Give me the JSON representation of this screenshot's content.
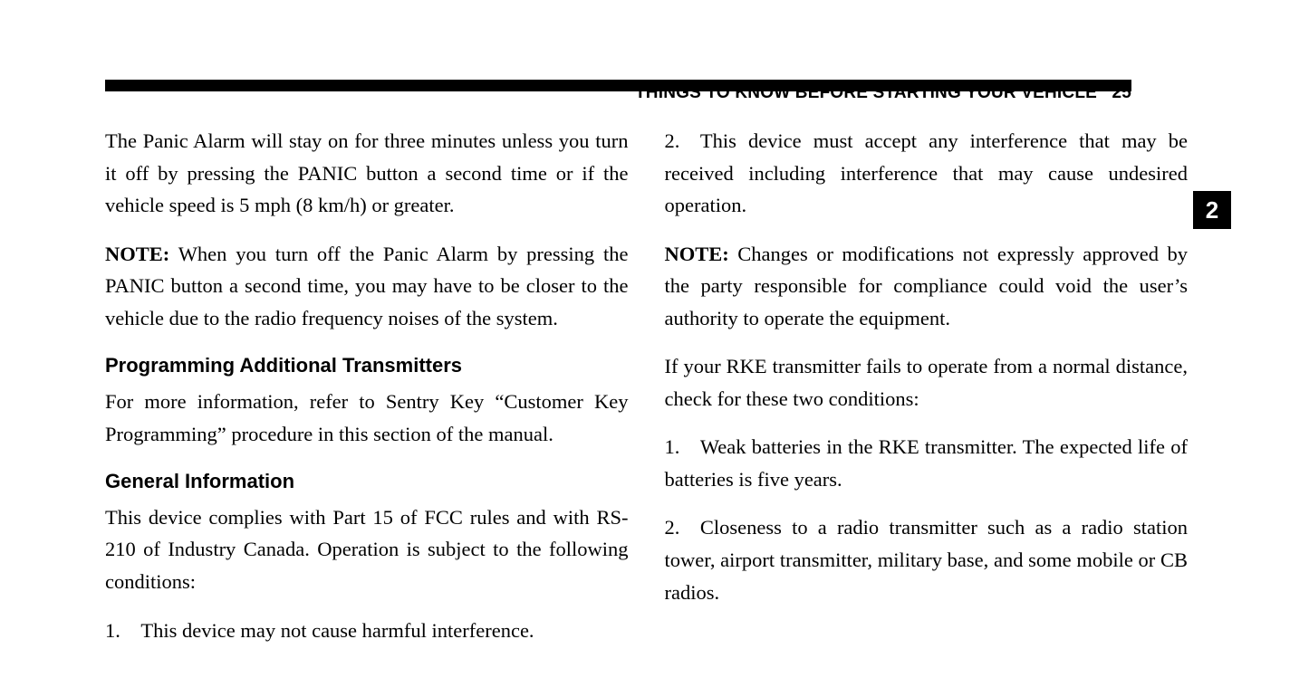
{
  "header": {
    "section_title": "THINGS TO KNOW BEFORE STARTING YOUR VEHICLE",
    "page_number": "25",
    "tab_number": "2"
  },
  "left_column": {
    "para1": "The Panic Alarm will stay on for three minutes unless you turn it off by pressing the PANIC button a second time or if the vehicle speed is 5 mph (8 km/h) or greater.",
    "note1_label": "NOTE:",
    "note1_text": "  When you turn off the Panic Alarm by pressing the PANIC button a second time, you may have to be closer to the vehicle due to the radio frequency noises of the system.",
    "heading1": "Programming Additional Transmitters",
    "para2": "For more information, refer to Sentry Key “Customer Key Programming” procedure in this section of the manual.",
    "heading2": "General Information",
    "para3": "This device complies with Part 15 of FCC rules and with RS-210 of Industry Canada. Operation is subject to the following conditions:",
    "item1": "1. This device may not cause harmful interference."
  },
  "right_column": {
    "item2": "2. This device must accept any interference that may be received including interference that may cause undesired operation.",
    "note2_label": "NOTE:",
    "note2_text": "  Changes or modifications not expressly approved by the party responsible for compliance could void the user’s authority to operate the equipment.",
    "para4": "If your RKE transmitter fails to operate from a normal distance, check for these two conditions:",
    "item3": "1. Weak batteries in the RKE transmitter. The expected life of batteries is five years.",
    "item4": "2. Closeness to a radio transmitter such as a radio station tower, airport transmitter, military base, and some mobile or CB radios."
  },
  "style": {
    "page_bg": "#ffffff",
    "text_color": "#000000",
    "bar_color": "#000000",
    "tab_bg": "#000000",
    "tab_fg": "#ffffff",
    "body_font": "Georgia, 'Times New Roman', serif",
    "heading_font": "Arial, Helvetica, sans-serif",
    "body_fontsize": 22.5,
    "heading_fontsize": 22,
    "header_fontsize": 19,
    "line_height": 1.58
  }
}
